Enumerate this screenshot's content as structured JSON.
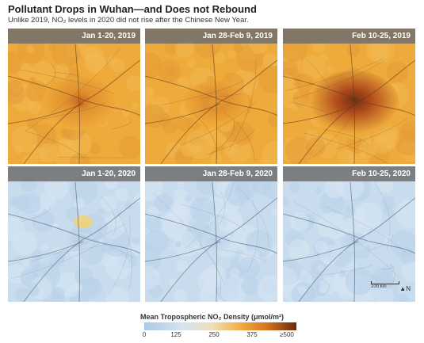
{
  "title": "Pollutant Drops in Wuhan—and Does not Rebound",
  "subtitle": "Unlike 2019, NO₂ levels in 2020 did not rise after the Chinese New Year.",
  "panels": [
    {
      "label": "Jan 1-20, 2019",
      "year": "2019",
      "palette": "warm",
      "intensity": 0.55
    },
    {
      "label": "Jan 28-Feb 9, 2019",
      "year": "2019",
      "palette": "warm",
      "intensity": 0.35
    },
    {
      "label": "Feb 10-25, 2019",
      "year": "2019",
      "palette": "warm",
      "intensity": 0.9
    },
    {
      "label": "Jan 1-20, 2020",
      "year": "2020",
      "palette": "cool",
      "intensity": 0.4
    },
    {
      "label": "Jan 28-Feb 9, 2020",
      "year": "2020",
      "palette": "cool",
      "intensity": 0.1
    },
    {
      "label": "Feb 10-25, 2020",
      "year": "2020",
      "palette": "cool",
      "intensity": 0.12
    }
  ],
  "scale_bar": "100 km",
  "north_label": "N",
  "legend": {
    "title": "Mean Tropospheric NO₂ Density (μmol/m²)",
    "ticks": [
      "0",
      "125",
      "250",
      "375",
      "≥500"
    ]
  },
  "colors": {
    "warm_base": "#eeaa3a",
    "warm_hot": "#6d2a0e",
    "cool_base": "#c9dcee",
    "cool_warm_spot": "#efd27a"
  }
}
